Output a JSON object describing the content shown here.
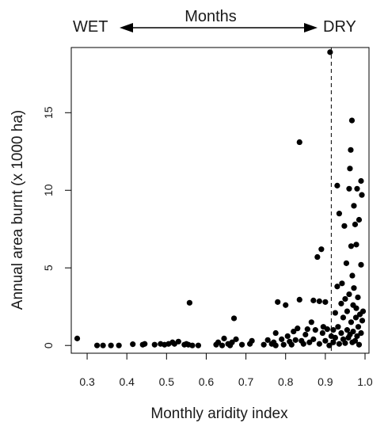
{
  "chart_data": {
    "type": "scatter",
    "xlabel": "Monthly aridity index",
    "ylabel": "Annual area burnt (x 1000 ha)",
    "xlim": [
      0.26,
      1.01
    ],
    "ylim": [
      -0.5,
      19.2
    ],
    "x_ticks": [
      "0.3",
      "0.4",
      "0.5",
      "0.6",
      "0.7",
      "0.8",
      "0.9",
      "1.0"
    ],
    "x_tick_values": [
      0.3,
      0.4,
      0.5,
      0.6,
      0.7,
      0.8,
      0.9,
      1.0
    ],
    "y_ticks": [
      "0",
      "5",
      "10",
      "15"
    ],
    "y_tick_values": [
      0,
      5,
      10,
      15
    ],
    "threshold_line": {
      "x": 0.915,
      "style": "dashed"
    },
    "header": {
      "left": "WET",
      "center": "Months",
      "right": "DRY"
    },
    "point_color": "#000000",
    "series": [
      {
        "points": [
          [
            0.275,
            0.45
          ],
          [
            0.325,
            0.0
          ],
          [
            0.34,
            0.0
          ],
          [
            0.36,
            0.0
          ],
          [
            0.38,
            0.0
          ],
          [
            0.415,
            0.08
          ],
          [
            0.44,
            0.05
          ],
          [
            0.445,
            0.1
          ],
          [
            0.47,
            0.05
          ],
          [
            0.485,
            0.1
          ],
          [
            0.495,
            0.05
          ],
          [
            0.505,
            0.1
          ],
          [
            0.515,
            0.2
          ],
          [
            0.52,
            0.1
          ],
          [
            0.53,
            0.25
          ],
          [
            0.545,
            0.05
          ],
          [
            0.55,
            0.1
          ],
          [
            0.555,
            0.05
          ],
          [
            0.558,
            2.75
          ],
          [
            0.565,
            0.0
          ],
          [
            0.58,
            0.0
          ],
          [
            0.625,
            0.05
          ],
          [
            0.63,
            0.2
          ],
          [
            0.64,
            0.0
          ],
          [
            0.645,
            0.45
          ],
          [
            0.655,
            0.1
          ],
          [
            0.66,
            0.0
          ],
          [
            0.665,
            0.2
          ],
          [
            0.67,
            1.75
          ],
          [
            0.675,
            0.4
          ],
          [
            0.69,
            0.05
          ],
          [
            0.71,
            0.1
          ],
          [
            0.715,
            0.3
          ],
          [
            0.745,
            0.05
          ],
          [
            0.755,
            0.35
          ],
          [
            0.765,
            0.1
          ],
          [
            0.77,
            0.2
          ],
          [
            0.775,
            0.0
          ],
          [
            0.775,
            0.8
          ],
          [
            0.78,
            2.8
          ],
          [
            0.79,
            0.4
          ],
          [
            0.795,
            0.05
          ],
          [
            0.8,
            2.6
          ],
          [
            0.805,
            0.6
          ],
          [
            0.81,
            0.25
          ],
          [
            0.815,
            0.05
          ],
          [
            0.82,
            0.9
          ],
          [
            0.825,
            0.35
          ],
          [
            0.83,
            1.1
          ],
          [
            0.835,
            13.1
          ],
          [
            0.835,
            2.95
          ],
          [
            0.84,
            0.3
          ],
          [
            0.845,
            0.1
          ],
          [
            0.85,
            0.7
          ],
          [
            0.855,
            1.05
          ],
          [
            0.86,
            0.2
          ],
          [
            0.865,
            1.5
          ],
          [
            0.87,
            0.4
          ],
          [
            0.87,
            2.9
          ],
          [
            0.875,
            1.0
          ],
          [
            0.88,
            5.7
          ],
          [
            0.885,
            0.1
          ],
          [
            0.885,
            2.85
          ],
          [
            0.89,
            6.2
          ],
          [
            0.893,
            0.8
          ],
          [
            0.895,
            1.2
          ],
          [
            0.9,
            0.3
          ],
          [
            0.9,
            2.8
          ],
          [
            0.905,
            1.05
          ],
          [
            0.91,
            0.0
          ],
          [
            0.912,
            18.9
          ],
          [
            0.915,
            0.6
          ],
          [
            0.92,
            1.0
          ],
          [
            0.92,
            0.2
          ],
          [
            0.925,
            0.5
          ],
          [
            0.925,
            2.1
          ],
          [
            0.93,
            3.8
          ],
          [
            0.93,
            10.3
          ],
          [
            0.932,
            1.2
          ],
          [
            0.935,
            8.5
          ],
          [
            0.935,
            0.1
          ],
          [
            0.94,
            2.7
          ],
          [
            0.94,
            0.8
          ],
          [
            0.942,
            4.0
          ],
          [
            0.945,
            1.8
          ],
          [
            0.945,
            0.4
          ],
          [
            0.948,
            7.7
          ],
          [
            0.95,
            3.0
          ],
          [
            0.95,
            0.15
          ],
          [
            0.953,
            5.3
          ],
          [
            0.955,
            1.0
          ],
          [
            0.955,
            2.2
          ],
          [
            0.958,
            0.5
          ],
          [
            0.96,
            10.1
          ],
          [
            0.96,
            3.3
          ],
          [
            0.962,
            11.4
          ],
          [
            0.962,
            0.7
          ],
          [
            0.964,
            12.6
          ],
          [
            0.965,
            6.4
          ],
          [
            0.965,
            1.5
          ],
          [
            0.967,
            14.5
          ],
          [
            0.968,
            4.5
          ],
          [
            0.968,
            0.2
          ],
          [
            0.97,
            2.6
          ],
          [
            0.97,
            0.9
          ],
          [
            0.972,
            9.0
          ],
          [
            0.972,
            3.7
          ],
          [
            0.975,
            7.8
          ],
          [
            0.975,
            0.3
          ],
          [
            0.977,
            1.8
          ],
          [
            0.978,
            6.5
          ],
          [
            0.978,
            2.4
          ],
          [
            0.98,
            0.6
          ],
          [
            0.98,
            10.1
          ],
          [
            0.982,
            3.1
          ],
          [
            0.983,
            1.2
          ],
          [
            0.985,
            8.1
          ],
          [
            0.985,
            0.05
          ],
          [
            0.987,
            2.0
          ],
          [
            0.99,
            10.6
          ],
          [
            0.99,
            5.2
          ],
          [
            0.99,
            0.8
          ],
          [
            0.992,
            9.7
          ],
          [
            0.993,
            1.6
          ],
          [
            0.995,
            2.2
          ]
        ]
      }
    ]
  }
}
